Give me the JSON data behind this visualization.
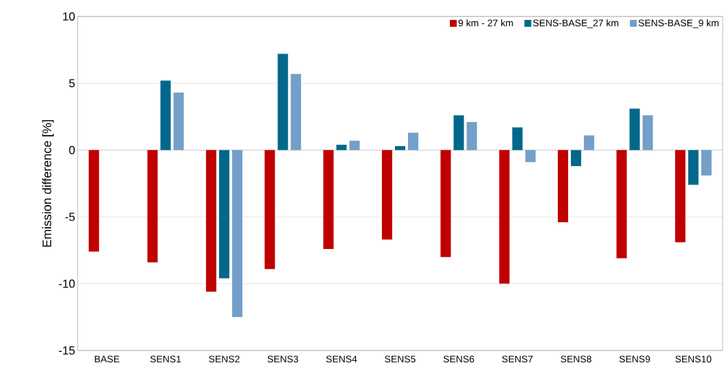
{
  "chart_data": {
    "type": "bar",
    "ylabel": "Emission difference [%]",
    "categories": [
      "BASE",
      "SENS1",
      "SENS2",
      "SENS3",
      "SENS4",
      "SENS5",
      "SENS6",
      "SENS7",
      "SENS8",
      "SENS9",
      "SENS10"
    ],
    "series": [
      {
        "name": "9 km - 27 km",
        "color": "#c00000",
        "values": [
          -7.6,
          -8.4,
          -10.6,
          -8.9,
          -7.4,
          -6.7,
          -8.0,
          -10.0,
          -5.4,
          -8.1,
          -6.9
        ]
      },
      {
        "name": "SENS-BASE_27 km",
        "color": "#00688b",
        "values": [
          null,
          5.2,
          -9.6,
          7.2,
          0.4,
          0.3,
          2.6,
          1.7,
          -1.2,
          3.1,
          -2.6
        ]
      },
      {
        "name": "SENS-BASE_9 km",
        "color": "#739fc9",
        "values": [
          null,
          4.3,
          -12.5,
          5.7,
          0.7,
          1.3,
          2.1,
          -0.9,
          1.1,
          2.6,
          -1.9
        ]
      }
    ],
    "ylim": [
      -15,
      10
    ],
    "yticks": [
      -15,
      -10,
      -5,
      0,
      5,
      10
    ],
    "grid": "y",
    "legend": "top right"
  }
}
